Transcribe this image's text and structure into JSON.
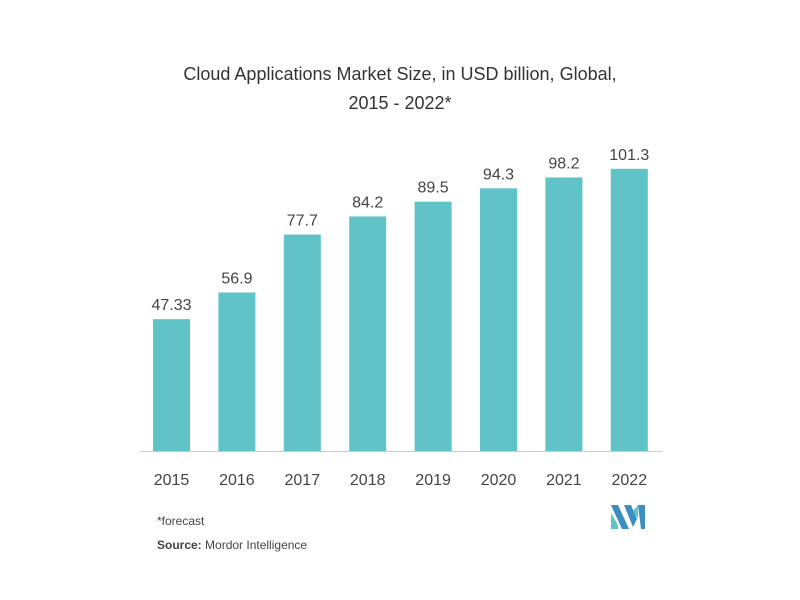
{
  "chart_data": {
    "type": "bar",
    "title": "Cloud Applications Market Size, in USD billion, Global,",
    "subtitle": "2015 - 2022*",
    "categories": [
      "2015",
      "2016",
      "2017",
      "2018",
      "2019",
      "2020",
      "2021",
      "2022"
    ],
    "values": [
      47.33,
      56.9,
      77.7,
      84.2,
      89.5,
      94.3,
      98.2,
      101.3
    ],
    "data_labels": [
      "47.33",
      "56.9",
      "77.7",
      "84.2",
      "89.5",
      "94.3",
      "98.2",
      "101.3"
    ],
    "xlabel": "",
    "ylabel": "",
    "ylim": [
      0,
      126
    ],
    "grid": false,
    "bar_color": "#5fc3c8",
    "axis_color": "#cccccc"
  },
  "footnote": "*forecast",
  "source_label": "Source:",
  "source_value": "Mordor Intelligence",
  "logo_text": "Mordor Intelligence logo",
  "logo_colors": [
    "#3a8ec4",
    "#5fc3c8"
  ]
}
